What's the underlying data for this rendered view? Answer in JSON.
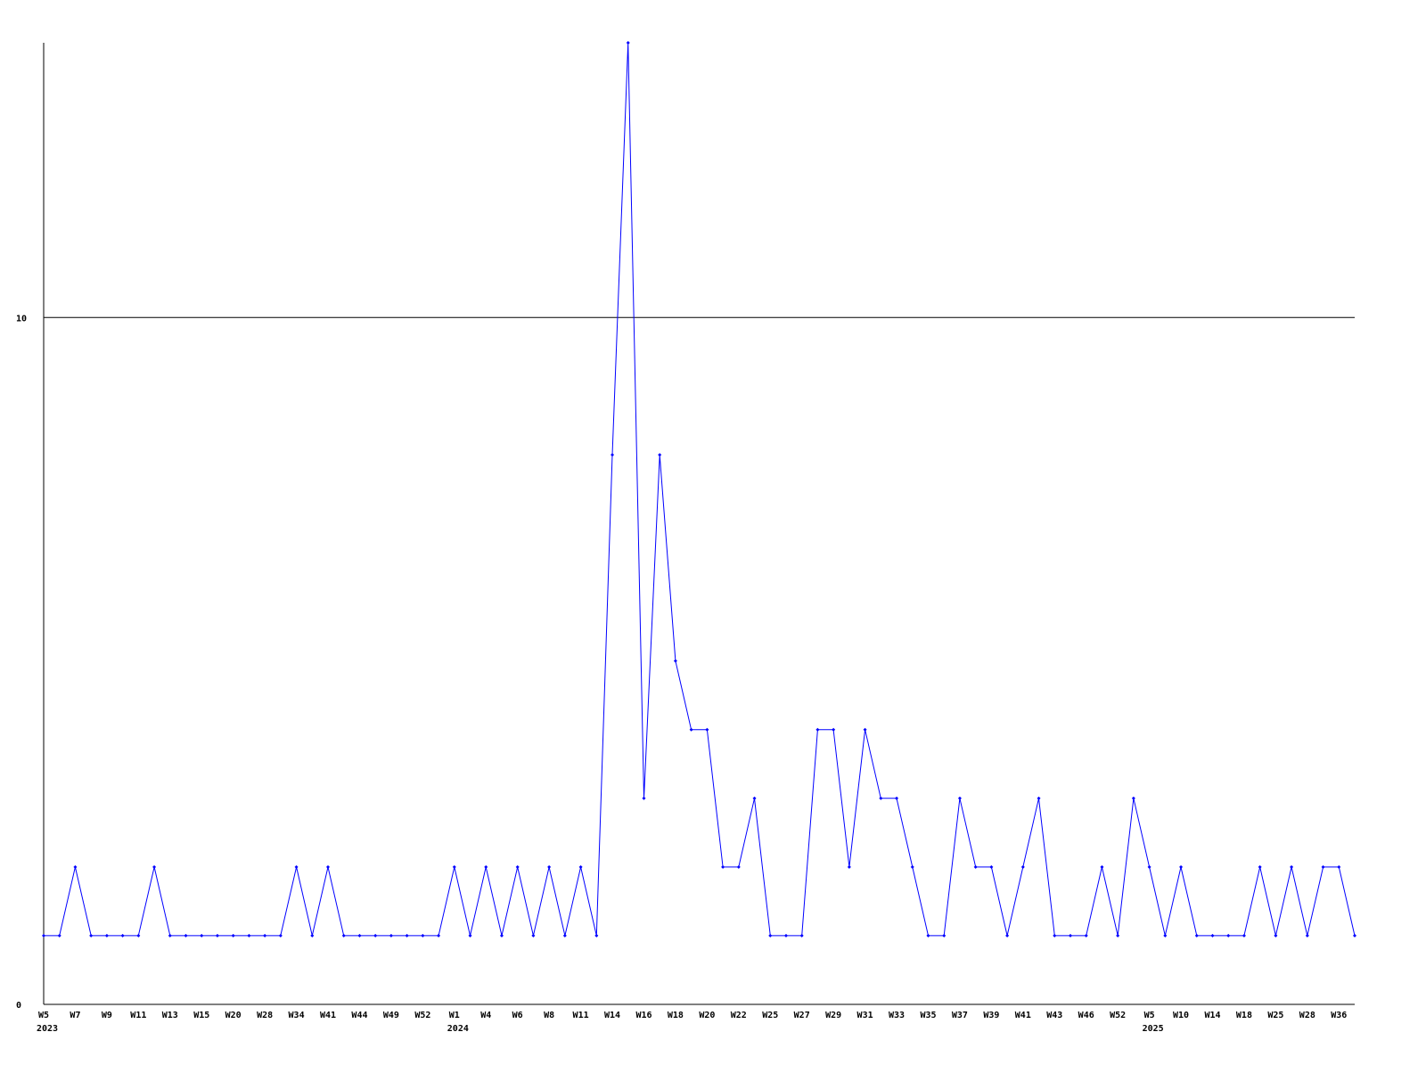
{
  "chart_data": {
    "type": "line",
    "title": "",
    "xlabel": "",
    "ylabel": "",
    "ylim": [
      0,
      14
    ],
    "yticks": [
      0,
      10
    ],
    "ytick_labels": [
      "0",
      "10"
    ],
    "grid": "horizontal line at 10",
    "line_color": "#0000ff",
    "axis_color": "#000000",
    "x_labels": [
      "W5",
      "",
      "W7",
      "",
      "W9",
      "",
      "W11",
      "",
      "W13",
      "",
      "W15",
      "",
      "W20",
      "",
      "W28",
      "",
      "W34",
      "",
      "W41",
      "",
      "W44",
      "",
      "W49",
      "",
      "W52",
      "",
      "W1",
      "",
      "W4",
      "",
      "W6",
      "",
      "W8",
      "",
      "W11",
      "",
      "W14",
      "",
      "W16",
      "",
      "W18",
      "",
      "W20",
      "",
      "W22",
      "",
      "W25",
      "",
      "W27",
      "",
      "W29",
      "",
      "W31",
      "",
      "W33",
      "",
      "W35",
      "",
      "W37",
      "",
      "W39",
      "",
      "W41",
      "",
      "W43",
      "",
      "W46",
      "",
      "W52",
      "",
      "W5",
      "",
      "W10",
      "",
      "W14",
      "",
      "W18",
      "",
      "W25",
      "",
      "W28",
      "",
      "W36",
      ""
    ],
    "year_labels": [
      {
        "label": "2023",
        "index": 0
      },
      {
        "label": "2024",
        "index": 26
      },
      {
        "label": "2025",
        "index": 70
      }
    ],
    "values": [
      1,
      1,
      2,
      1,
      1,
      1,
      1,
      2,
      1,
      1,
      1,
      1,
      1,
      1,
      1,
      1,
      2,
      1,
      2,
      1,
      1,
      1,
      1,
      1,
      1,
      1,
      2,
      1,
      2,
      1,
      2,
      1,
      2,
      1,
      2,
      1,
      8,
      14,
      3,
      8,
      5,
      4,
      4,
      2,
      2,
      3,
      1,
      1,
      1,
      4,
      4,
      2,
      4,
      3,
      3,
      2,
      1,
      1,
      3,
      2,
      2,
      1,
      2,
      3,
      1,
      1,
      1,
      2,
      1,
      3,
      2,
      1,
      2,
      1,
      1,
      1,
      1,
      2,
      1,
      2,
      1,
      2,
      2,
      1
    ]
  }
}
